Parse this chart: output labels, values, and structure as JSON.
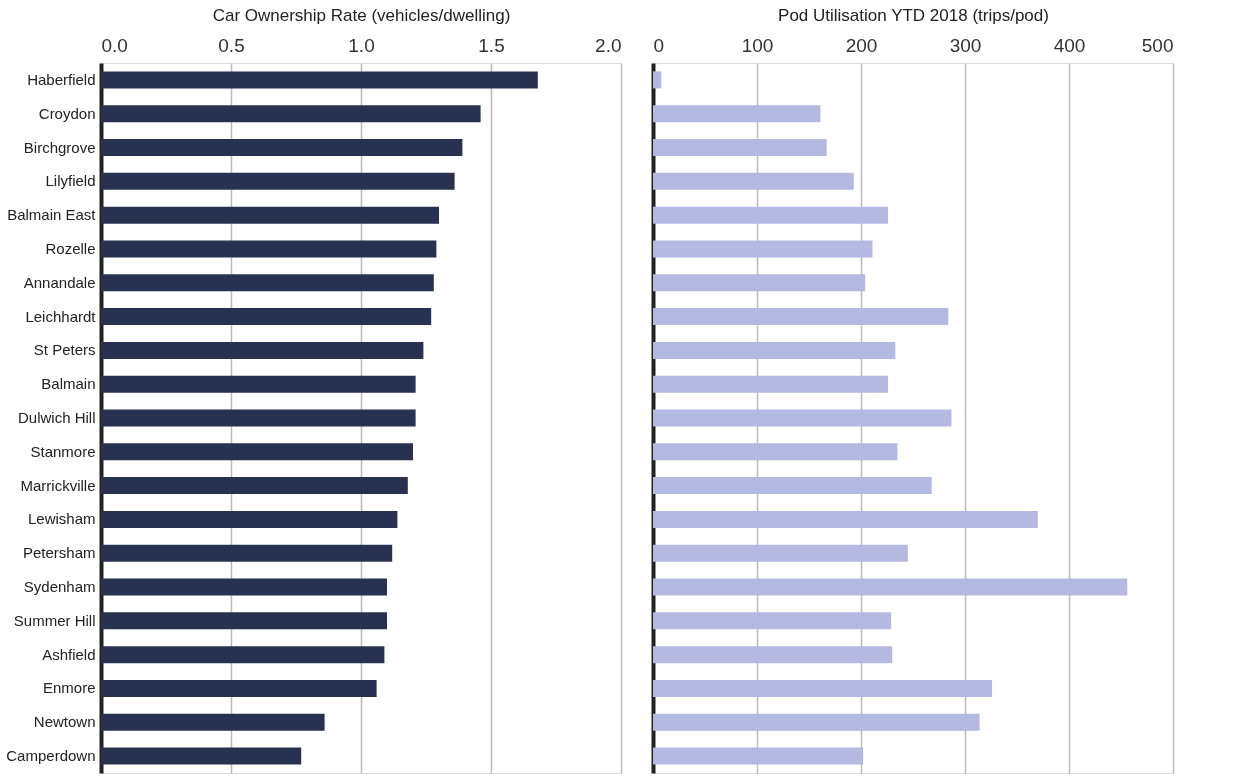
{
  "chart_data": [
    {
      "type": "bar",
      "orientation": "horizontal",
      "xlabel": "Car Ownership Rate (vehicles/dwelling)",
      "categories": [
        "Haberfield",
        "Croydon",
        "Birchgrove",
        "Lilyfield",
        "Balmain East",
        "Rozelle",
        "Annandale",
        "Leichhardt",
        "St Peters",
        "Balmain",
        "Dulwich Hill",
        "Stanmore",
        "Marrickville",
        "Lewisham",
        "Petersham",
        "Sydenham",
        "Summer Hill",
        "Ashfield",
        "Enmore",
        "Newtown",
        "Camperdown"
      ],
      "values": [
        1.68,
        1.46,
        1.39,
        1.36,
        1.3,
        1.29,
        1.28,
        1.27,
        1.24,
        1.21,
        1.21,
        1.2,
        1.18,
        1.14,
        1.12,
        1.1,
        1.1,
        1.09,
        1.06,
        0.86,
        0.77
      ],
      "color": "#283250",
      "xlim": [
        0,
        2.0
      ],
      "xticks": [
        {
          "value": 0,
          "label": "0.0"
        },
        {
          "value": 0.5,
          "label": "0.5"
        },
        {
          "value": 1.0,
          "label": "1.0"
        },
        {
          "value": 1.5,
          "label": "1.5"
        },
        {
          "value": 2.0,
          "label": "2.0"
        }
      ],
      "grid": "x"
    },
    {
      "type": "bar",
      "orientation": "horizontal",
      "xlabel": "Pod Utilisation YTD 2018 (trips/pod)",
      "categories": [
        null,
        null,
        null,
        null,
        null,
        null,
        null,
        null,
        null,
        null,
        null,
        null,
        null,
        null,
        null,
        null,
        null,
        null,
        null,
        null,
        null
      ],
      "values": [
        8,
        161,
        167,
        193,
        226,
        211,
        204,
        284,
        233,
        226,
        287,
        235,
        268,
        370,
        245,
        456,
        229,
        230,
        326,
        314,
        202
      ],
      "color": "#b3b9e0",
      "xlim": [
        0,
        500
      ],
      "xticks": [
        0,
        100,
        200,
        300,
        400,
        500
      ],
      "grid": "x",
      "tick_labels": "x"
    }
  ]
}
